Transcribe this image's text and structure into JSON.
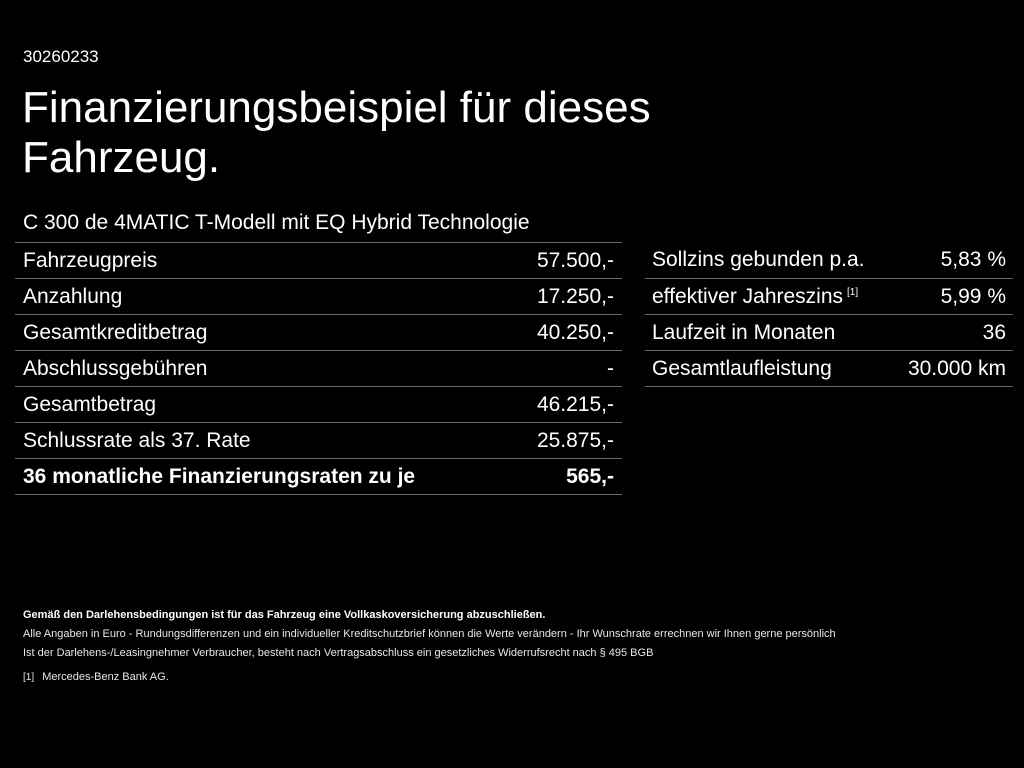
{
  "header": {
    "ref_id": "30260233",
    "title": "Finanzierungsbeispiel für dieses Fahrzeug.",
    "model": "C 300 de 4MATIC T-Modell mit EQ Hybrid Technologie"
  },
  "left_table": {
    "rows": [
      {
        "label": "Fahrzeugpreis",
        "value": "57.500,-"
      },
      {
        "label": "Anzahlung",
        "value": "17.250,-"
      },
      {
        "label": "Gesamtkreditbetrag",
        "value": "40.250,-"
      },
      {
        "label": "Abschlussgebühren",
        "value": "-"
      },
      {
        "label": "Gesamtbetrag",
        "value": "46.215,-"
      },
      {
        "label": "Schlussrate als 37. Rate",
        "value": "25.875,-"
      },
      {
        "label": "36 monatliche Finanzierungsraten zu je",
        "value": "565,-"
      }
    ]
  },
  "right_table": {
    "rows": [
      {
        "label": "Sollzins gebunden p.a.",
        "value": "5,83 %"
      },
      {
        "label": "effektiver Jahreszins",
        "sup": "[1]",
        "value": "5,99 %"
      },
      {
        "label": "Laufzeit in Monaten",
        "value": "36"
      },
      {
        "label": "Gesamtlaufleistung",
        "value": "30.000 km"
      }
    ]
  },
  "footer": {
    "insurance_note": "Gemäß den Darlehensbedingungen ist für das Fahrzeug eine Vollkaskoversicherung abzuschließen.",
    "euro_note": "Alle Angaben in Euro - Rundungsdifferenzen und ein individueller Kreditschutzbrief können die Werte verändern - Ihr Wunschrate errechnen wir Ihnen gerne persönlich",
    "withdrawal_note": "Ist der Darlehens-/Leasingnehmer Verbraucher, besteht nach Vertragsabschluss ein gesetzliches Widerrufsrecht nach § 495 BGB",
    "footnote_mark": "[1]",
    "footnote_text": "Mercedes-Benz Bank AG."
  }
}
